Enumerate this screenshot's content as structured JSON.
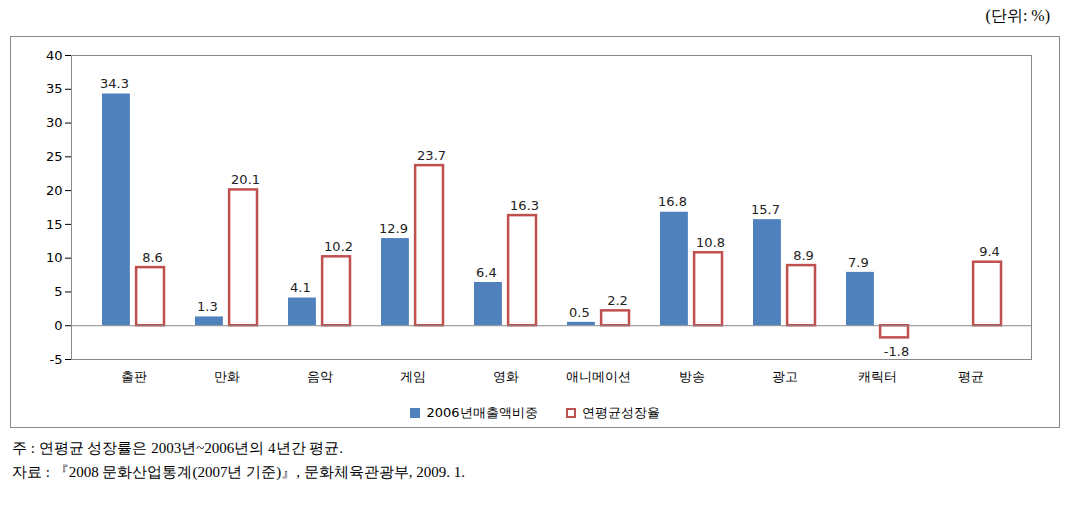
{
  "chart_data": {
    "type": "bar",
    "subtitle": "(단위: %)",
    "categories": [
      "출판",
      "만화",
      "음악",
      "게임",
      "영화",
      "애니메이션",
      "방송",
      "광고",
      "캐릭터",
      "평균"
    ],
    "series": [
      {
        "name": "2006년매출액비중",
        "color": "#4f81bd",
        "values": [
          34.3,
          1.3,
          4.1,
          12.9,
          6.4,
          0.5,
          16.8,
          15.7,
          7.9,
          null
        ]
      },
      {
        "name": "연평균성장율",
        "color": "#c0504d",
        "values": [
          8.6,
          20.1,
          10.2,
          23.7,
          16.3,
          2.2,
          10.8,
          8.9,
          -1.8,
          9.4
        ]
      }
    ],
    "ylim": [
      -5,
      40
    ],
    "yticks": [
      -5,
      0,
      5,
      10,
      15,
      20,
      25,
      30,
      35,
      40
    ],
    "grid": false,
    "data_labels": true,
    "legend": "bottom",
    "annotations": [
      "주 : 연평균 성장률은 2003년~2006년의 4년간 평균.",
      "자료 : 『2008 문화산업통계(2007년 기준)』, 문화체육관광부, 2009. 1."
    ]
  }
}
